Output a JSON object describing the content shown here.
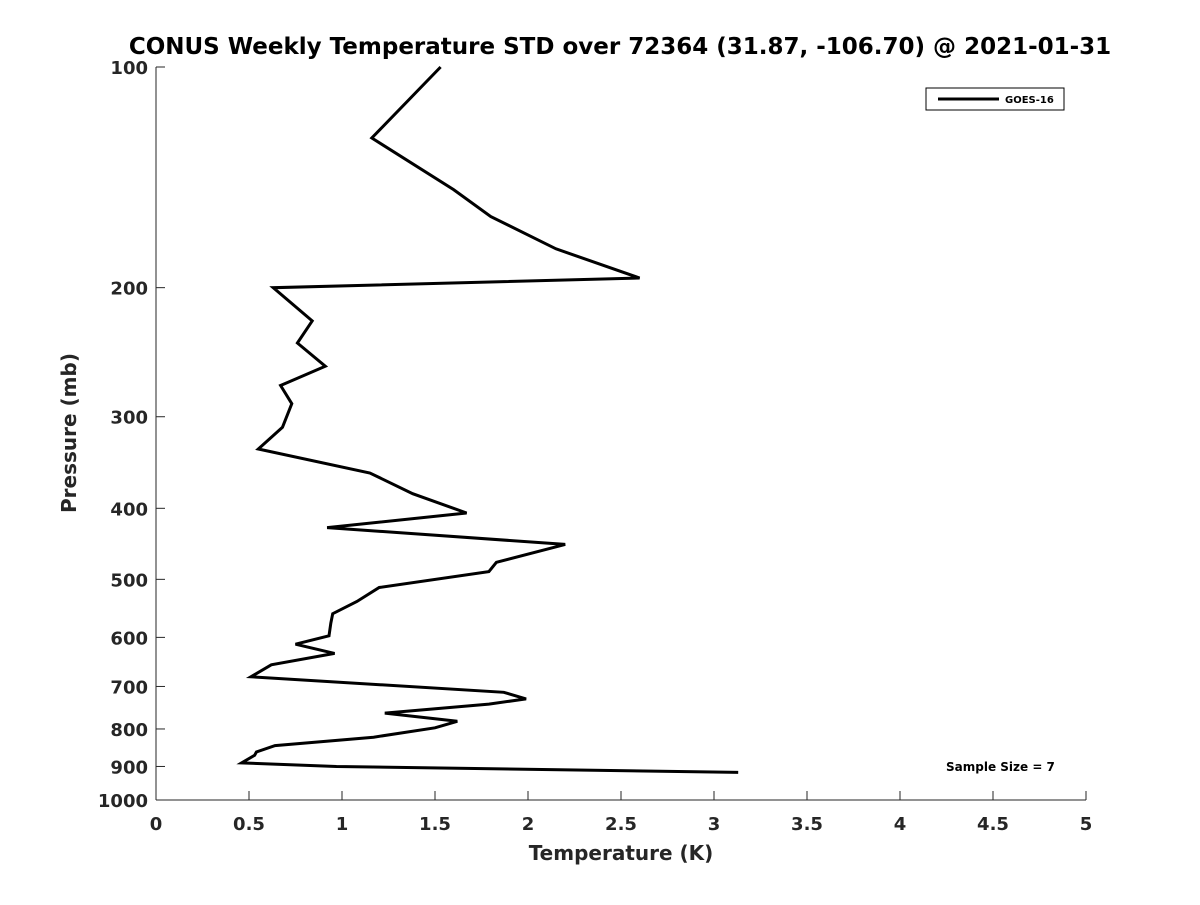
{
  "chart_data": {
    "type": "line",
    "title": "CONUS Weekly Temperature STD over 72364 (31.87, -106.70) @ 2021-01-31",
    "xlabel": "Temperature (K)",
    "ylabel": "Pressure (mb)",
    "xlim": [
      0,
      5
    ],
    "ylim": [
      1000,
      100
    ],
    "yscale": "log",
    "y_reversed": true,
    "grid": false,
    "legend_position": "top-right",
    "x_ticks": [
      0,
      0.5,
      1,
      1.5,
      2,
      2.5,
      3,
      3.5,
      4,
      4.5,
      5
    ],
    "x_tick_labels": [
      "0",
      "0.5",
      "1",
      "1.5",
      "2",
      "2.5",
      "3",
      "3.5",
      "4",
      "4.5",
      "5"
    ],
    "y_ticks": [
      100,
      200,
      300,
      400,
      500,
      600,
      700,
      800,
      900,
      1000
    ],
    "y_tick_labels": [
      "100",
      "200",
      "300",
      "400",
      "500",
      "600",
      "700",
      "800",
      "900",
      "1000"
    ],
    "annotation": "Sample Size = 7",
    "series": [
      {
        "name": "GOES-16",
        "color": "#000000",
        "x": [
          1.53,
          1.16,
          1.6,
          1.8,
          2.15,
          2.6,
          0.63,
          0.84,
          0.76,
          0.91,
          0.67,
          0.73,
          0.68,
          0.55,
          1.15,
          1.38,
          1.67,
          0.92,
          2.2,
          1.83,
          1.79,
          1.2,
          1.08,
          0.95,
          0.94,
          0.93,
          0.75,
          0.96,
          0.62,
          0.51,
          1.87,
          1.99,
          1.79,
          1.23,
          1.62,
          1.5,
          1.17,
          0.64,
          0.54,
          0.53,
          0.46,
          0.97,
          3.13
        ],
        "y": [
          100,
          125,
          147,
          160,
          177,
          194,
          200,
          222,
          238,
          256,
          272,
          288,
          310,
          332,
          358,
          382,
          406,
          425,
          448,
          474,
          488,
          513,
          536,
          557,
          574,
          597,
          613,
          631,
          654,
          679,
          713,
          728,
          740,
          761,
          781,
          797,
          821,
          843,
          860,
          869,
          890,
          900,
          917
        ]
      }
    ]
  }
}
